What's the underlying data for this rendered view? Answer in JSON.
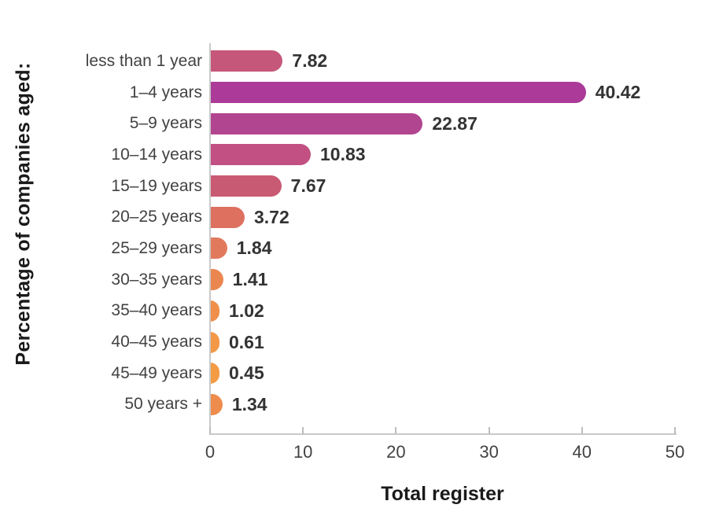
{
  "chart_data": {
    "type": "bar",
    "orientation": "horizontal",
    "title": "",
    "xlabel": "Total register",
    "ylabel": "Percentage of companies aged:",
    "categories": [
      "less than 1 year",
      "1–4 years",
      "5–9 years",
      "10–14 years",
      "15–19 years",
      "20–25 years",
      "25–29 years",
      "30–35 years",
      "35–40 years",
      "40–45 years",
      "45–49 years",
      "50 years +"
    ],
    "values": [
      7.82,
      40.42,
      22.87,
      10.83,
      7.67,
      3.72,
      1.84,
      1.41,
      1.02,
      0.61,
      0.45,
      1.34
    ],
    "value_labels": [
      "7.82",
      "40.42",
      "22.87",
      "10.83",
      "7.67",
      "3.72",
      "1.84",
      "1.41",
      "1.02",
      "0.61",
      "0.45",
      "1.34"
    ],
    "bar_colors": [
      "#c5577a",
      "#ab3a99",
      "#b2458f",
      "#c25083",
      "#c95a73",
      "#de7060",
      "#e17a5c",
      "#ea8750",
      "#ef8f4a",
      "#f29847",
      "#f39c44",
      "#ee8c4d"
    ],
    "xlim": [
      0,
      50
    ],
    "x_ticks": [
      0,
      10,
      20,
      30,
      40,
      50
    ],
    "grid": false,
    "legend": "none",
    "axis_line_color": "#c9c9c9",
    "tick_color": "#bdbdbd",
    "category_label_color": "#424242",
    "value_label_color": "#333333",
    "title_color": "#1a1a1a",
    "background_color": "#ffffff"
  }
}
